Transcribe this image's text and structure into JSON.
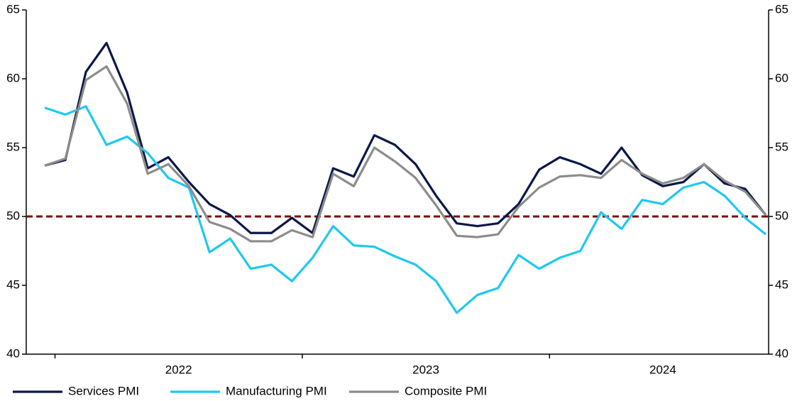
{
  "chart_data": {
    "type": "line",
    "categories": [
      null,
      null,
      null,
      null,
      null,
      null,
      null,
      null,
      null,
      null,
      null,
      null,
      null,
      null,
      null,
      null,
      null,
      null,
      null,
      null,
      null,
      null,
      null,
      null,
      null,
      null,
      null,
      null,
      null,
      null,
      null,
      null,
      null,
      null,
      null,
      null
    ],
    "year_labels": [
      "2022",
      "2023",
      "2024"
    ],
    "series": [
      {
        "name": "Services PMI",
        "color": "#0b1747",
        "values": [
          53.7,
          54.1,
          60.5,
          62.6,
          59.0,
          53.5,
          54.3,
          52.5,
          50.9,
          50.1,
          48.8,
          48.8,
          49.9,
          48.8,
          53.5,
          52.9,
          55.9,
          55.2,
          53.8,
          51.5,
          49.5,
          49.3,
          49.5,
          50.9,
          53.4,
          54.3,
          53.8,
          53.1,
          55.0,
          53.0,
          52.2,
          52.5,
          53.8,
          52.4,
          52.0,
          50.1
        ]
      },
      {
        "name": "Manufacturing PMI",
        "color": "#1ec8f0",
        "values": [
          57.9,
          57.4,
          58.0,
          55.2,
          55.8,
          54.6,
          52.8,
          52.1,
          47.4,
          48.4,
          46.2,
          46.5,
          45.3,
          47.0,
          49.3,
          47.9,
          47.8,
          47.1,
          46.5,
          45.3,
          43.0,
          44.3,
          44.8,
          47.2,
          46.2,
          47.0,
          47.5,
          50.3,
          49.1,
          51.2,
          50.9,
          52.1,
          52.5,
          51.5,
          49.9,
          48.7
        ]
      },
      {
        "name": "Composite PMI",
        "color": "#8c8c8c",
        "values": [
          53.7,
          54.2,
          59.9,
          60.9,
          58.2,
          53.1,
          53.8,
          52.2,
          49.6,
          49.1,
          48.2,
          48.2,
          49.0,
          48.5,
          53.1,
          52.2,
          55.0,
          54.0,
          52.8,
          50.8,
          48.6,
          48.5,
          48.7,
          50.7,
          52.1,
          52.9,
          53.0,
          52.8,
          54.1,
          53.1,
          52.4,
          52.8,
          53.8,
          52.6,
          51.8,
          50.1
        ]
      }
    ],
    "ylim": [
      40,
      65
    ],
    "yticks": [
      40,
      45,
      50,
      55,
      60,
      65
    ],
    "y2lim": [
      40,
      65
    ],
    "y2ticks": [
      40,
      45,
      50,
      55,
      60,
      65
    ],
    "reference_line": {
      "value": 50,
      "color": "#7a0a0a",
      "style": "dashed"
    },
    "grid": false,
    "legend": "bottom"
  }
}
